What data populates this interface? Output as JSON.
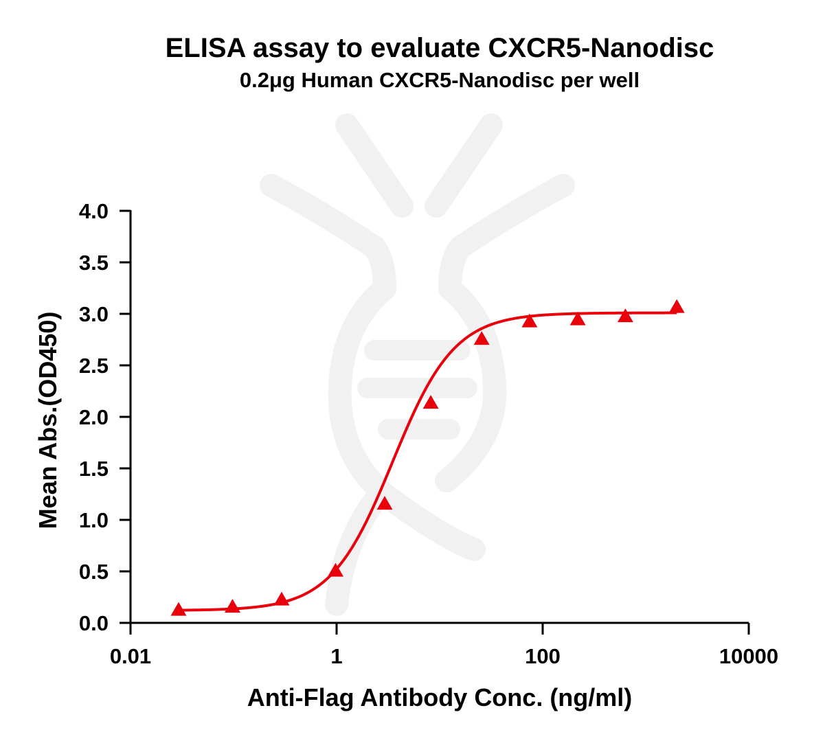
{
  "chart_data": {
    "type": "scatter",
    "title": "ELISA assay to evaluate CXCR5-Nanodisc",
    "subtitle": "0.2μg Human CXCR5-Nanodisc per well",
    "xlabel": "Anti-Flag Antibody Conc. (ng/ml)",
    "ylabel": "Mean Abs.(OD450)",
    "x_scale": "log",
    "xlim": [
      0.01,
      10000
    ],
    "ylim": [
      0.0,
      4.0
    ],
    "x_ticks": [
      {
        "value": 0.01,
        "label": "0.01"
      },
      {
        "value": 1,
        "label": "1"
      },
      {
        "value": 100,
        "label": "100"
      },
      {
        "value": 10000,
        "label": "10000"
      }
    ],
    "y_ticks": [
      {
        "value": 0.0,
        "label": "0.0"
      },
      {
        "value": 0.5,
        "label": "0.5"
      },
      {
        "value": 1.0,
        "label": "1.0"
      },
      {
        "value": 1.5,
        "label": "1.5"
      },
      {
        "value": 2.0,
        "label": "2.0"
      },
      {
        "value": 2.5,
        "label": "2.5"
      },
      {
        "value": 3.0,
        "label": "3.0"
      },
      {
        "value": 3.5,
        "label": "3.5"
      },
      {
        "value": 4.0,
        "label": "4.0"
      }
    ],
    "grid": false,
    "series": [
      {
        "marker": "triangle",
        "color": "#e8000b",
        "x": [
          0.0293,
          0.0977,
          0.293,
          0.977,
          2.93,
          8.2,
          25.6,
          74.6,
          219,
          635,
          2000
        ],
        "y": [
          0.12,
          0.15,
          0.22,
          0.5,
          1.15,
          2.13,
          2.75,
          2.92,
          2.94,
          2.97,
          3.06
        ]
      }
    ],
    "fit": {
      "type": "4PL",
      "bottom": 0.12,
      "top": 3.01,
      "ec50": 3.5,
      "hill": 1.45,
      "color": "#e8000b"
    }
  }
}
